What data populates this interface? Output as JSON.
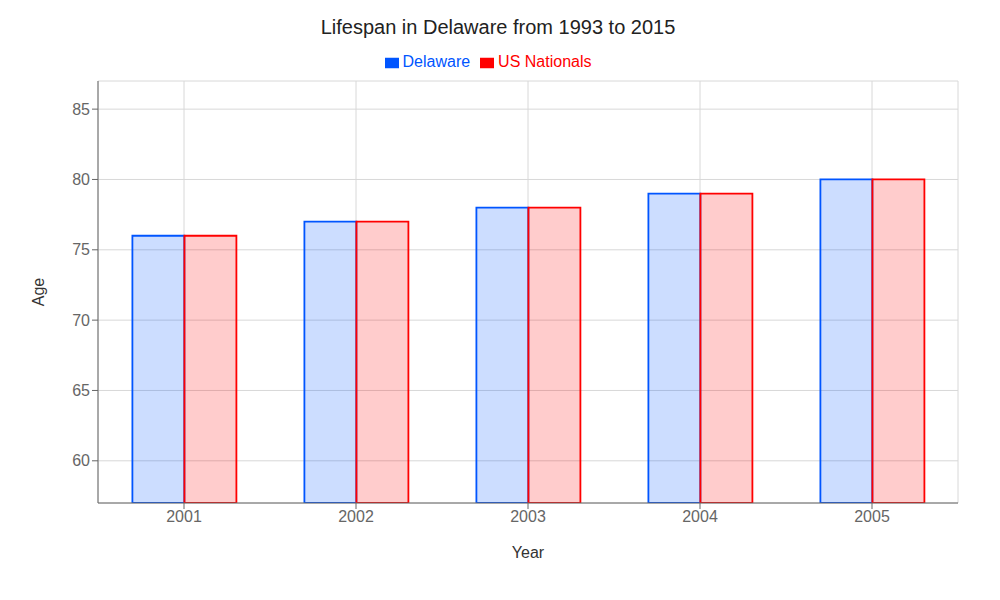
{
  "chart_data": {
    "type": "bar",
    "title": "Lifespan in Delaware from 1993 to 2015",
    "x_label": "Year",
    "y_label": "Age",
    "categories": [
      "2001",
      "2002",
      "2003",
      "2004",
      "2005"
    ],
    "series": [
      {
        "name": "Delaware",
        "color": "#0055ff",
        "values": [
          76,
          77,
          78,
          79,
          80
        ]
      },
      {
        "name": "US Nationals",
        "color": "#ff0000",
        "values": [
          76,
          77,
          78,
          79,
          80
        ]
      }
    ],
    "ylim": [
      57,
      87
    ],
    "yticks": [
      60,
      65,
      70,
      75,
      80,
      85
    ],
    "grid": true,
    "legend": "top"
  }
}
